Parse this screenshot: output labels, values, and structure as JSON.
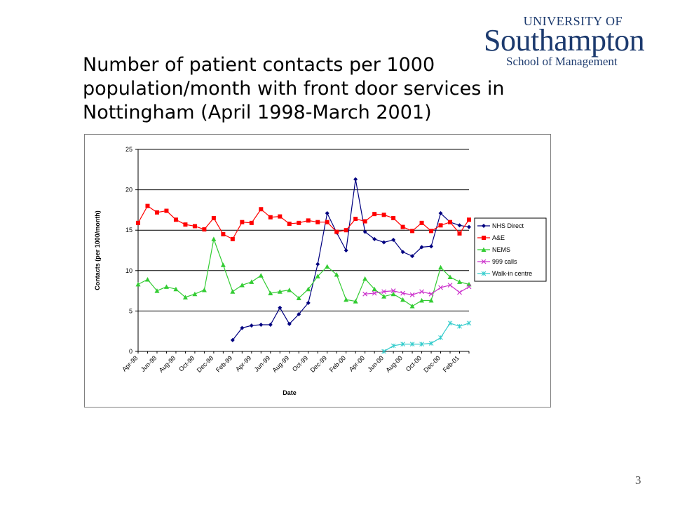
{
  "slide": {
    "title_lines": [
      "Number of patient contacts per 1000",
      "population/month with front door services in",
      "Nottingham (April 1998-March 2001)"
    ],
    "page_number": "3"
  },
  "logo": {
    "line1": "UNIVERSITY OF",
    "line2": "Southampton",
    "line3": "School of Management"
  },
  "colors": {
    "nhs_direct": "#000080",
    "ae": "#ff0000",
    "nems": "#33cc33",
    "calls999": "#cc33cc",
    "walkin": "#33cccc",
    "logo": "#1c3a6e"
  },
  "chart_data": {
    "type": "line",
    "title": "Number of patient contacts per 1000 population/month with front door services in Nottingham (April 1998-March 2001)",
    "xlabel": "Date",
    "ylabel": "Contacts (per 1000/month)",
    "ylim": [
      0,
      25
    ],
    "yticks": [
      0,
      5,
      10,
      15,
      20,
      25
    ],
    "grid": "horizontal",
    "legend_position": "right",
    "categories": [
      "Apr-98",
      "May-98",
      "Jun-98",
      "Jul-98",
      "Aug-98",
      "Sep-98",
      "Oct-98",
      "Nov-98",
      "Dec-98",
      "Jan-99",
      "Feb-99",
      "Mar-99",
      "Apr-99",
      "May-99",
      "Jun-99",
      "Jul-99",
      "Aug-99",
      "Sep-99",
      "Oct-99",
      "Nov-99",
      "Dec-99",
      "Jan-00",
      "Feb-00",
      "Mar-00",
      "Apr-00",
      "May-00",
      "Jun-00",
      "Jul-00",
      "Aug-00",
      "Sep-00",
      "Oct-00",
      "Nov-00",
      "Dec-00",
      "Jan-01",
      "Feb-01",
      "Mar-01"
    ],
    "tick_labels": [
      "Apr-98",
      "Jun-98",
      "Aug-98",
      "Oct-98",
      "Dec-98",
      "Feb-99",
      "Apr-99",
      "Jun-99",
      "Aug-99",
      "Oct-99",
      "Dec-99",
      "Feb-00",
      "Apr-00",
      "Jun-00",
      "Aug-00",
      "Oct-00",
      "Dec-00",
      "Feb-01"
    ],
    "series": [
      {
        "name": "NHS Direct",
        "color": "#000080",
        "marker": "diamond",
        "values": [
          null,
          null,
          null,
          null,
          null,
          null,
          null,
          null,
          null,
          null,
          1.4,
          2.9,
          3.2,
          3.3,
          3.3,
          5.4,
          3.4,
          4.6,
          6.0,
          10.8,
          17.1,
          14.7,
          12.5,
          21.3,
          14.8,
          13.9,
          13.5,
          13.8,
          12.3,
          11.8,
          12.9,
          13.0,
          17.1,
          16.0,
          15.6,
          15.4
        ]
      },
      {
        "name": "A&E",
        "color": "#ff0000",
        "marker": "square",
        "values": [
          15.9,
          18.0,
          17.2,
          17.4,
          16.3,
          15.7,
          15.5,
          15.1,
          16.5,
          14.5,
          13.9,
          16.0,
          15.9,
          17.6,
          16.6,
          16.7,
          15.8,
          15.9,
          16.2,
          16.0,
          16.0,
          14.8,
          15.0,
          16.4,
          16.1,
          17.0,
          16.9,
          16.5,
          15.4,
          14.9,
          15.9,
          14.9,
          15.6,
          16.0,
          14.6,
          16.3
        ]
      },
      {
        "name": "NEMS",
        "color": "#33cc33",
        "marker": "triangle",
        "values": [
          8.3,
          8.9,
          7.5,
          8.0,
          7.7,
          6.7,
          7.1,
          7.6,
          13.9,
          10.7,
          7.4,
          8.2,
          8.6,
          9.4,
          7.2,
          7.4,
          7.6,
          6.6,
          7.7,
          9.3,
          10.5,
          9.5,
          6.4,
          6.2,
          9.0,
          7.7,
          6.8,
          7.1,
          6.4,
          5.6,
          6.3,
          6.3,
          10.4,
          9.2,
          8.6,
          8.3
        ]
      },
      {
        "name": "999 calls",
        "color": "#cc33cc",
        "marker": "x",
        "values": [
          null,
          null,
          null,
          null,
          null,
          null,
          null,
          null,
          null,
          null,
          null,
          null,
          null,
          null,
          null,
          null,
          null,
          null,
          null,
          null,
          null,
          null,
          null,
          null,
          7.1,
          7.2,
          7.4,
          7.5,
          7.2,
          7.0,
          7.4,
          7.1,
          7.9,
          8.2,
          7.3,
          8.0
        ]
      },
      {
        "name": "Walk-in centre",
        "color": "#33cccc",
        "marker": "asterisk",
        "values": [
          null,
          null,
          null,
          null,
          null,
          null,
          null,
          null,
          null,
          null,
          null,
          null,
          null,
          null,
          null,
          null,
          null,
          null,
          null,
          null,
          null,
          null,
          null,
          null,
          null,
          null,
          0.0,
          0.7,
          0.9,
          0.9,
          0.9,
          1.0,
          1.7,
          3.5,
          3.1,
          3.5
        ]
      }
    ]
  }
}
